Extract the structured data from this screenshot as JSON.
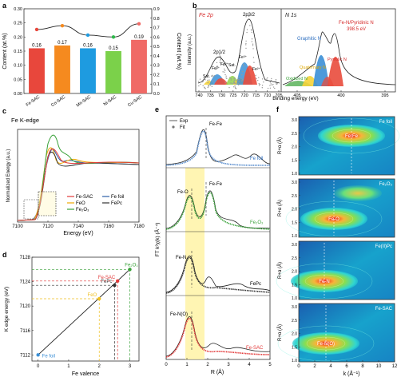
{
  "panels": {
    "a": {
      "label": "a",
      "ylabel_left": "Content (at.%)",
      "ylabel_right": "Content (wt.%)",
      "yticks_left": [
        "0.00",
        "0.05",
        "0.10",
        "0.15",
        "0.20",
        "0.25",
        "0.30"
      ],
      "yticks_right": [
        "0.0",
        "0.1",
        "0.2",
        "0.3",
        "0.4",
        "0.5",
        "0.6",
        "0.7",
        "0.8",
        "0.9"
      ],
      "bars": [
        {
          "name": "Fe-SAC",
          "value": 0.16,
          "label": "0.16",
          "color": "#e8473c"
        },
        {
          "name": "Co-SAC",
          "value": 0.17,
          "label": "0.17",
          "color": "#f58a1f"
        },
        {
          "name": "Mn-SAC",
          "value": 0.16,
          "label": "0.16",
          "color": "#1e9be0"
        },
        {
          "name": "Ni-SAC",
          "value": 0.15,
          "label": "0.15",
          "color": "#7bd14a"
        },
        {
          "name": "Cu-SAC",
          "value": 0.19,
          "label": "0.19",
          "color": "#f06a66"
        }
      ],
      "wt_points": [
        0.68,
        0.72,
        0.62,
        0.6,
        0.74
      ],
      "wt_colors": [
        "#e8473c",
        "#f58a1f",
        "#1e9be0",
        "#2eb84a",
        "#f06a66"
      ]
    },
    "b": {
      "label": "b",
      "fe2p_title": "Fe 2p",
      "n1s_title": "N 1s",
      "ylabel": "Intensity (a.u.)",
      "xlabel": "Binding energy (eV)",
      "xticks_left": [
        "740",
        "735",
        "730",
        "725",
        "720",
        "715",
        "710",
        "705"
      ],
      "xticks_right": [
        "405",
        "400",
        "395"
      ],
      "annotations": {
        "p2p12": "2p1/2",
        "p2p32": "2p3/2",
        "sat1": "Sat.",
        "sat2": "Sat.",
        "fe3a": "Fe³⁺",
        "fe2a": "Fe²⁺",
        "fe3b": "Fe³⁺",
        "fe2b": "Fe²⁺",
        "graphitic": "Graphitic N",
        "fen1": "Fe-N/Pyridinic N",
        "fen2": "398.5 eV",
        "quaternary": "Quaternary N",
        "pyrrolic": "Pyrrolic N",
        "oxidized": "Oxidized N"
      }
    },
    "c": {
      "label": "c",
      "title": "Fe K-edge",
      "ylabel": "Normalized Energy (a.u.)",
      "xlabel": "Energy (eV)",
      "xticks": [
        "7100",
        "7120",
        "7140",
        "7160",
        "7180"
      ],
      "legend": [
        {
          "name": "Fe-SAC",
          "color": "#e33b3b"
        },
        {
          "name": "FeO",
          "color": "#f0a800"
        },
        {
          "name": "Fe2O3",
          "color": "#3aa23a"
        },
        {
          "name": "Fe foil",
          "color": "#2d5fa8"
        },
        {
          "name": "FePc",
          "color": "#333333"
        }
      ]
    },
    "d": {
      "label": "d",
      "ylabel": "K edge energy (eV)",
      "xlabel": "Fe valence",
      "yticks": [
        "7112",
        "7116",
        "7120",
        "7124",
        "7128"
      ],
      "xticks": [
        "0",
        "1",
        "2",
        "3"
      ],
      "ylim": [
        7111,
        7128
      ],
      "xlim": [
        -0.2,
        3.3
      ],
      "points": [
        {
          "name": "Fe foil",
          "x": 0,
          "y": 7112.0,
          "color": "#3b8fd6"
        },
        {
          "name": "FeO",
          "x": 2.0,
          "y": 7121.2,
          "color": "#f0c020"
        },
        {
          "name": "FePc",
          "x": 2.5,
          "y": 7123.4,
          "color": "#333333"
        },
        {
          "name": "Fe-SAC",
          "x": 2.6,
          "y": 7124.1,
          "color": "#e33b3b"
        },
        {
          "name": "Fe2O3",
          "x": 3.0,
          "y": 7126.0,
          "color": "#3aa23a"
        }
      ]
    },
    "e": {
      "label": "e",
      "ylabel": "FT k³χ(k) (Å⁻⁴)",
      "xlabel": "R (Å)",
      "xticks": [
        "0",
        "1",
        "2",
        "3",
        "4",
        "5"
      ],
      "legend_exp": "Exp",
      "legend_fit": "Fit",
      "annotations": {
        "fefe1": "Fe-Fe",
        "fefoil": "Fe foil",
        "feo": "Fe-O",
        "fefe2": "Fe-Fe",
        "fe2o3": "Fe2O3",
        "fen": "Fe-N",
        "fepc": "FePc",
        "feno": "Fe-N(O)",
        "fesac": "Fe-SAC"
      }
    },
    "f": {
      "label": "f",
      "ylabel": "R+α (Å)",
      "xlabel": "k (Å⁻¹)",
      "xticks": [
        "0",
        "2",
        "4",
        "6",
        "8",
        "10",
        "12"
      ],
      "yticks": [
        "1.0",
        "1.5",
        "2.0",
        "2.5",
        "3.0"
      ],
      "maps": [
        {
          "title": "Fe foil",
          "peak": "Fe-Fe"
        },
        {
          "title": "Fe2O3",
          "peak": "Fe-O"
        },
        {
          "title": "Fe(II)Pc",
          "peak": "Fe-N"
        },
        {
          "title": "Fe-SAC",
          "peak": "Fe-N(O)"
        }
      ]
    }
  }
}
